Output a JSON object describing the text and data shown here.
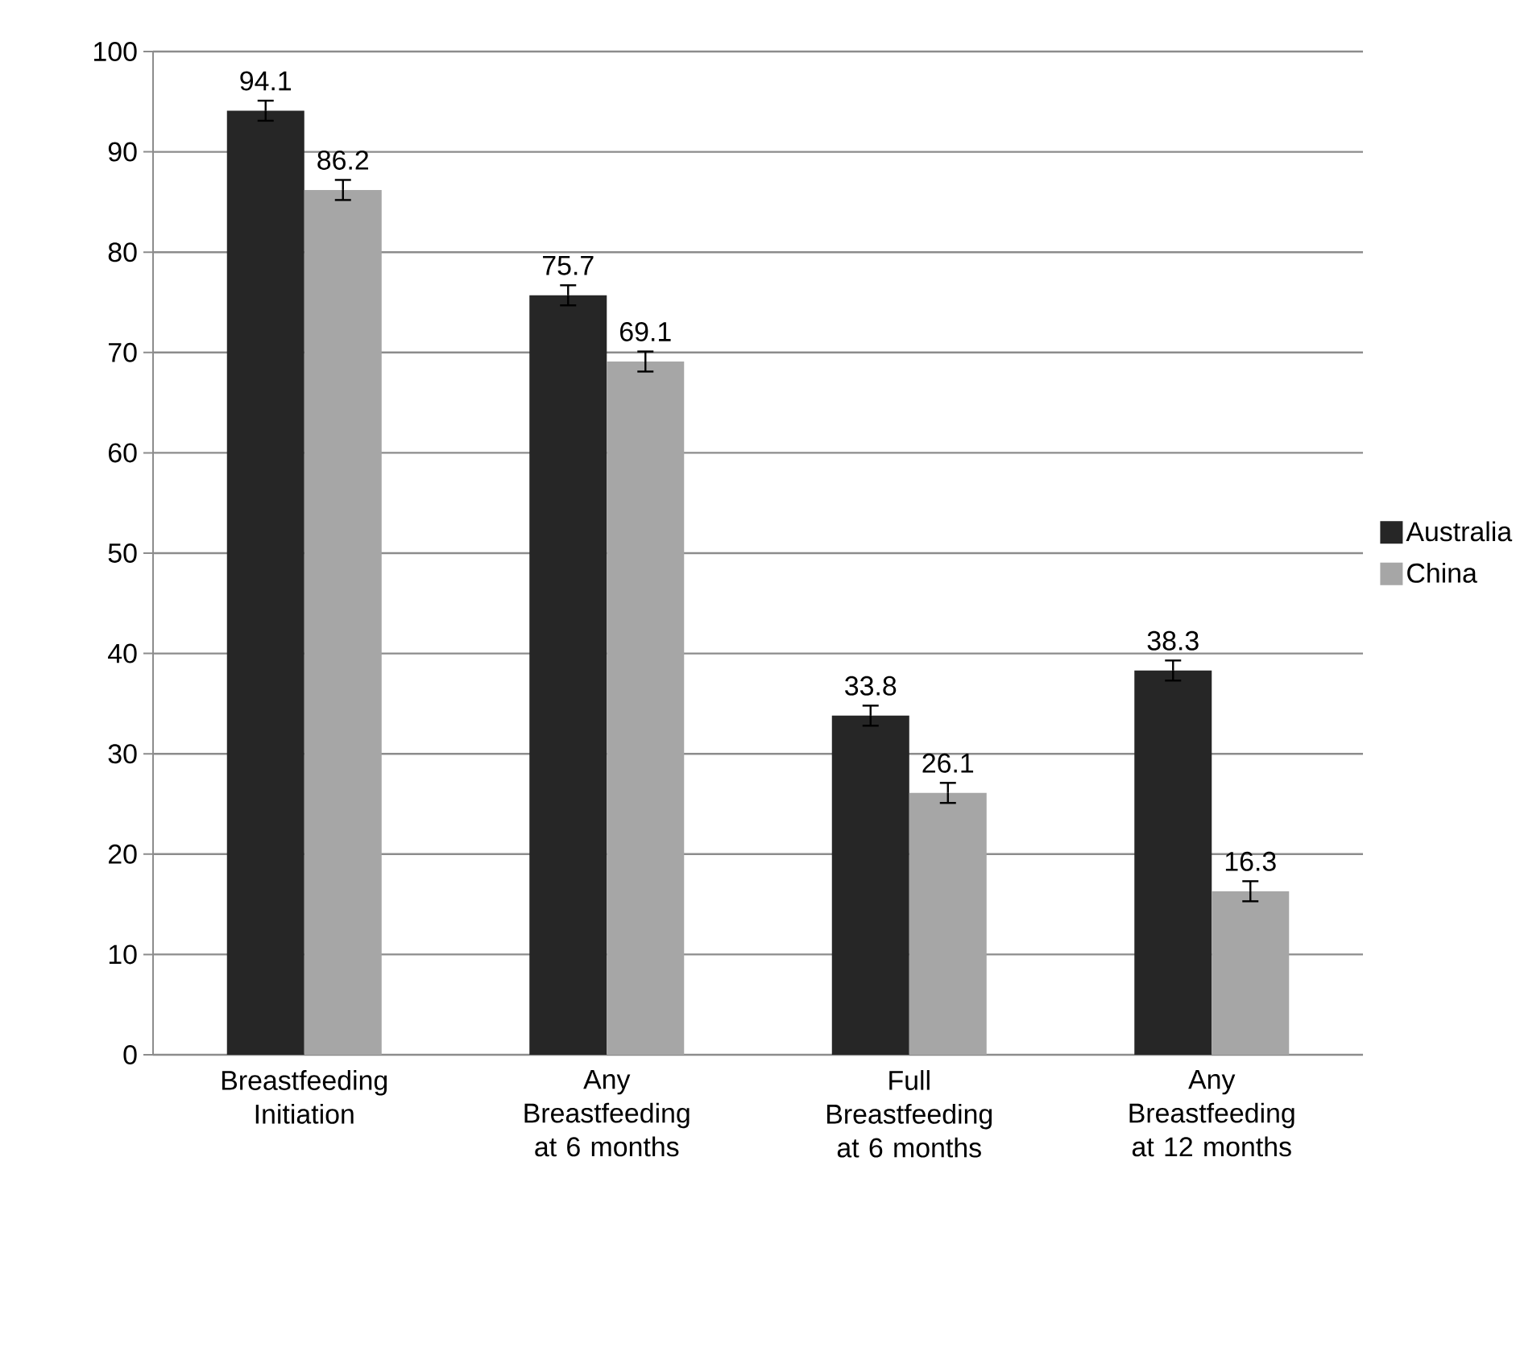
{
  "chart_data": {
    "type": "bar",
    "categories": [
      "Breastfeeding Initiation",
      "Any Breastfeeding at 6 months",
      "Full Breastfeeding at 6 months",
      "Any Breastfeeding at 12 months"
    ],
    "series": [
      {
        "name": "Australia",
        "color": "#262626",
        "values": [
          94.1,
          75.7,
          33.8,
          38.3
        ],
        "errors": [
          1,
          1,
          1,
          1
        ]
      },
      {
        "name": "China",
        "color": "#a6a6a6",
        "values": [
          86.2,
          69.1,
          26.1,
          16.3
        ],
        "errors": [
          1,
          1,
          1,
          1
        ]
      }
    ],
    "ylim": [
      0,
      100
    ],
    "yticks": [
      0,
      10,
      20,
      30,
      40,
      50,
      60,
      70,
      80,
      90,
      100
    ],
    "grid": "y",
    "legend": "right",
    "data_labels": true
  }
}
